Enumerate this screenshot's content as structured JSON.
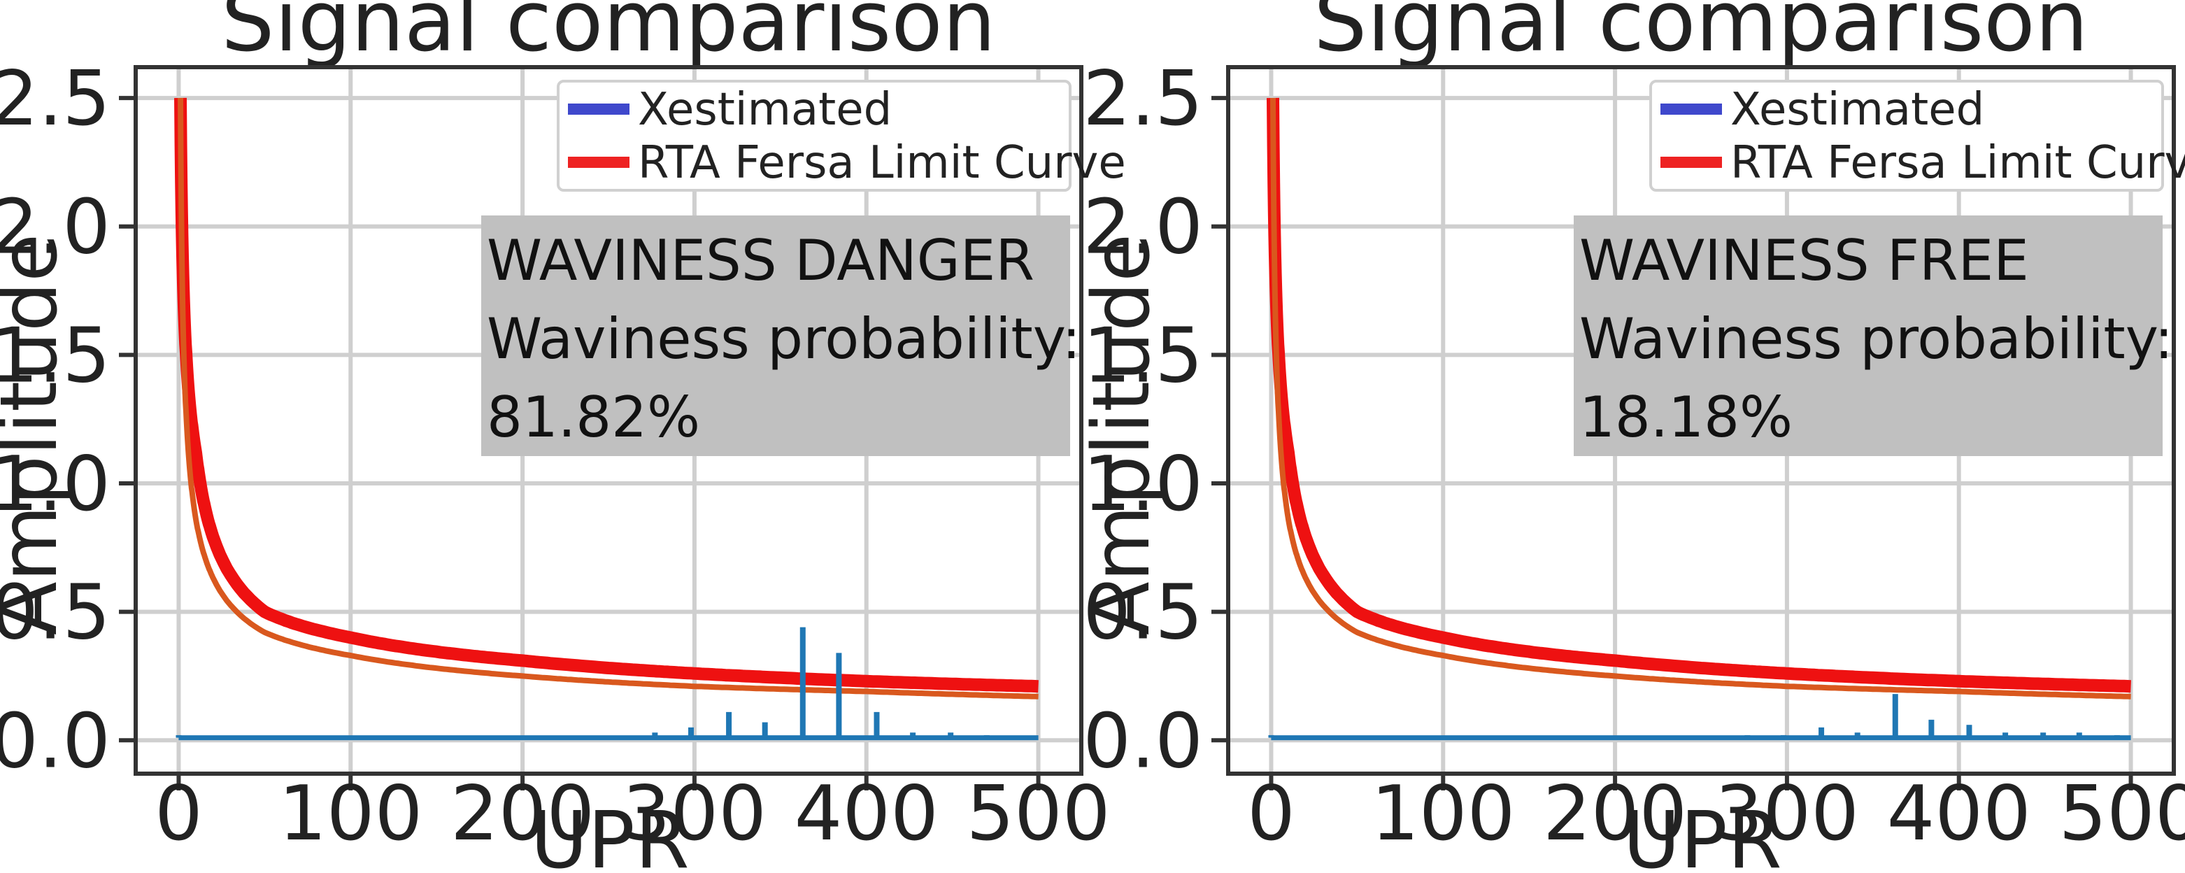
{
  "chart_data": [
    {
      "type": "line",
      "title": "Signal comparison",
      "xlabel": "UPR",
      "ylabel": "Amplitude",
      "xlim": [
        -25,
        525
      ],
      "ylim": [
        -0.13,
        2.62
      ],
      "xticks": [
        0,
        100,
        200,
        300,
        400,
        500
      ],
      "yticks": [
        0.0,
        0.5,
        1.0,
        1.5,
        2.0,
        2.5
      ],
      "xtick_labels": [
        "0",
        "100",
        "200",
        "300",
        "400",
        "500"
      ],
      "ytick_labels": [
        "0.0",
        "0.5",
        "1.0",
        "1.5",
        "2.0",
        "2.5"
      ],
      "grid": true,
      "legend_position": "top-right",
      "legend": [
        {
          "name": "Xestimated",
          "color": "#3f48cc"
        },
        {
          "name": "RTA Fersa Limit Curve",
          "color": "#ee2222"
        }
      ],
      "annotation": {
        "lines": [
          "WAVINESS DANGER",
          "Waviness probability:",
          " 81.82%"
        ],
        "background": "#c0c0c0"
      },
      "series": [
        {
          "name": "RTA Fersa Limit Curve",
          "color": "#ee1111",
          "curve": "inverse-power",
          "x_range": [
            1,
            500
          ],
          "values_at": {
            "x": [
              1,
              10,
              50,
              100,
              200,
              300,
              400,
              500
            ],
            "y": [
              2.5,
              1.12,
              0.5,
              0.4,
              0.31,
              0.26,
              0.23,
              0.21
            ]
          }
        },
        {
          "name": "",
          "color": "#d9581e",
          "curve": "inverse-power",
          "x_range": [
            1,
            500
          ],
          "values_at": {
            "x": [
              1,
              10,
              50,
              100,
              200,
              300,
              400,
              500
            ],
            "y": [
              2.5,
              0.86,
              0.42,
              0.33,
              0.25,
              0.21,
              0.19,
              0.17
            ]
          }
        },
        {
          "name": "Xestimated",
          "color": "#1f77b4",
          "baseline": 0.01,
          "x": [
            0,
            75,
            100,
            148,
            170,
            212,
            255,
            277,
            298,
            320,
            341,
            363,
            384,
            406,
            427,
            449,
            470,
            492
          ],
          "y": [
            0.02,
            0.01,
            0.01,
            0.01,
            0.01,
            0.01,
            0.01,
            0.03,
            0.05,
            0.11,
            0.07,
            0.44,
            0.34,
            0.11,
            0.03,
            0.03,
            0.02,
            0.01
          ]
        }
      ]
    },
    {
      "type": "line",
      "title": "Signal comparison",
      "xlabel": "UPR",
      "ylabel": "Amplitude",
      "xlim": [
        -25,
        525
      ],
      "ylim": [
        -0.13,
        2.62
      ],
      "xticks": [
        0,
        100,
        200,
        300,
        400,
        500
      ],
      "yticks": [
        0.0,
        0.5,
        1.0,
        1.5,
        2.0,
        2.5
      ],
      "xtick_labels": [
        "0",
        "100",
        "200",
        "300",
        "400",
        "500"
      ],
      "ytick_labels": [
        "0.0",
        "0.5",
        "1.0",
        "1.5",
        "2.0",
        "2.5"
      ],
      "grid": true,
      "legend_position": "top-right",
      "legend": [
        {
          "name": "Xestimated",
          "color": "#3f48cc"
        },
        {
          "name": "RTA Fersa Limit Curve",
          "color": "#ee2222"
        }
      ],
      "annotation": {
        "lines": [
          "WAVINESS FREE",
          "Waviness probability:",
          "18.18%"
        ],
        "background": "#c0c0c0"
      },
      "series": [
        {
          "name": "RTA Fersa Limit Curve",
          "color": "#ee1111",
          "curve": "inverse-power",
          "x_range": [
            1,
            500
          ],
          "values_at": {
            "x": [
              1,
              10,
              50,
              100,
              200,
              300,
              400,
              500
            ],
            "y": [
              2.5,
              1.12,
              0.5,
              0.4,
              0.31,
              0.26,
              0.23,
              0.21
            ]
          }
        },
        {
          "name": "",
          "color": "#d9581e",
          "curve": "inverse-power",
          "x_range": [
            1,
            500
          ],
          "values_at": {
            "x": [
              1,
              10,
              50,
              100,
              200,
              300,
              400,
              500
            ],
            "y": [
              2.5,
              0.86,
              0.42,
              0.33,
              0.25,
              0.21,
              0.19,
              0.17
            ]
          }
        },
        {
          "name": "Xestimated",
          "color": "#1f77b4",
          "baseline": 0.01,
          "x": [
            0,
            75,
            100,
            148,
            170,
            212,
            255,
            277,
            298,
            320,
            341,
            363,
            384,
            406,
            427,
            449,
            470,
            492
          ],
          "y": [
            0.02,
            0.01,
            0.01,
            0.01,
            0.01,
            0.01,
            0.01,
            0.02,
            0.02,
            0.05,
            0.03,
            0.18,
            0.08,
            0.06,
            0.03,
            0.03,
            0.03,
            0.02
          ]
        }
      ]
    }
  ]
}
